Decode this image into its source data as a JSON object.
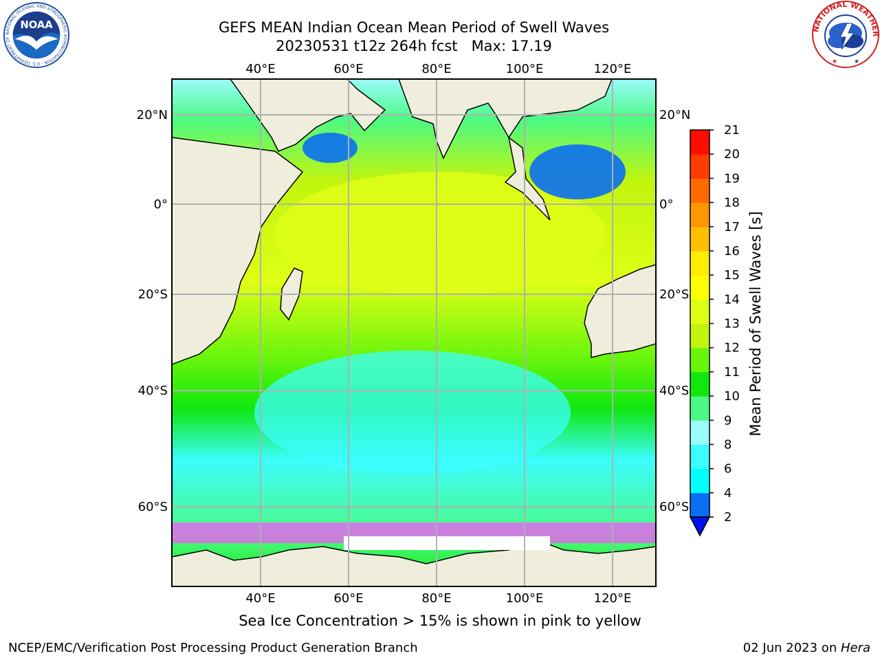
{
  "title": {
    "line1": "GEFS MEAN Indian Ocean Mean Period of Swell Waves",
    "line2": "20230531 t12z 264h fcst   Max: 17.19"
  },
  "map": {
    "lon_labels_top": [
      "40°E",
      "60°E",
      "80°E",
      "100°E",
      "120°E"
    ],
    "lon_labels_bottom": [
      "40°E",
      "60°E",
      "80°E",
      "100°E",
      "120°E"
    ],
    "lat_labels_left": [
      "20°N",
      "0°",
      "20°S",
      "40°S",
      "60°S"
    ],
    "lat_labels_right": [
      "20°N",
      "0°",
      "20°S",
      "40°S",
      "60°S"
    ],
    "land_color": "#efeddc",
    "coastline_color": "#000000",
    "grid_color": "#b0b0b0"
  },
  "colorbar": {
    "label": "Mean Period of Swell Waves [s]",
    "ticks": [
      "2",
      "4",
      "6",
      "8",
      "9",
      "10",
      "11",
      "12",
      "13",
      "14",
      "15",
      "16",
      "17",
      "18",
      "19",
      "20",
      "21"
    ],
    "colors": [
      "#0a6ff2",
      "#00ffff",
      "#3cfdfd",
      "#9bfcfc",
      "#4cfa83",
      "#10e70f",
      "#68f50c",
      "#c1f50e",
      "#dfff16",
      "#ffff00",
      "#ffed00",
      "#ffc000",
      "#ff9700",
      "#ff6a00",
      "#ff3d00",
      "#ff0d00"
    ],
    "extend_color": "#0011ee"
  },
  "caption": "Sea Ice Concentration > 15% is shown in pink to yellow",
  "footer": {
    "left": "NCEP/EMC/Verification Post Processing Product Generation Branch",
    "date": "02 Jun 2023 on ",
    "host": "Hera"
  },
  "logos": {
    "noaa_text": "NOAA",
    "noaa_ring": "NATIONAL OCEANIC AND ATMOSPHERIC ADMINISTRATION · U.S. DEPARTMENT OF COMMERCE",
    "nws_ring": "NATIONAL WEATHER SERVICE"
  }
}
